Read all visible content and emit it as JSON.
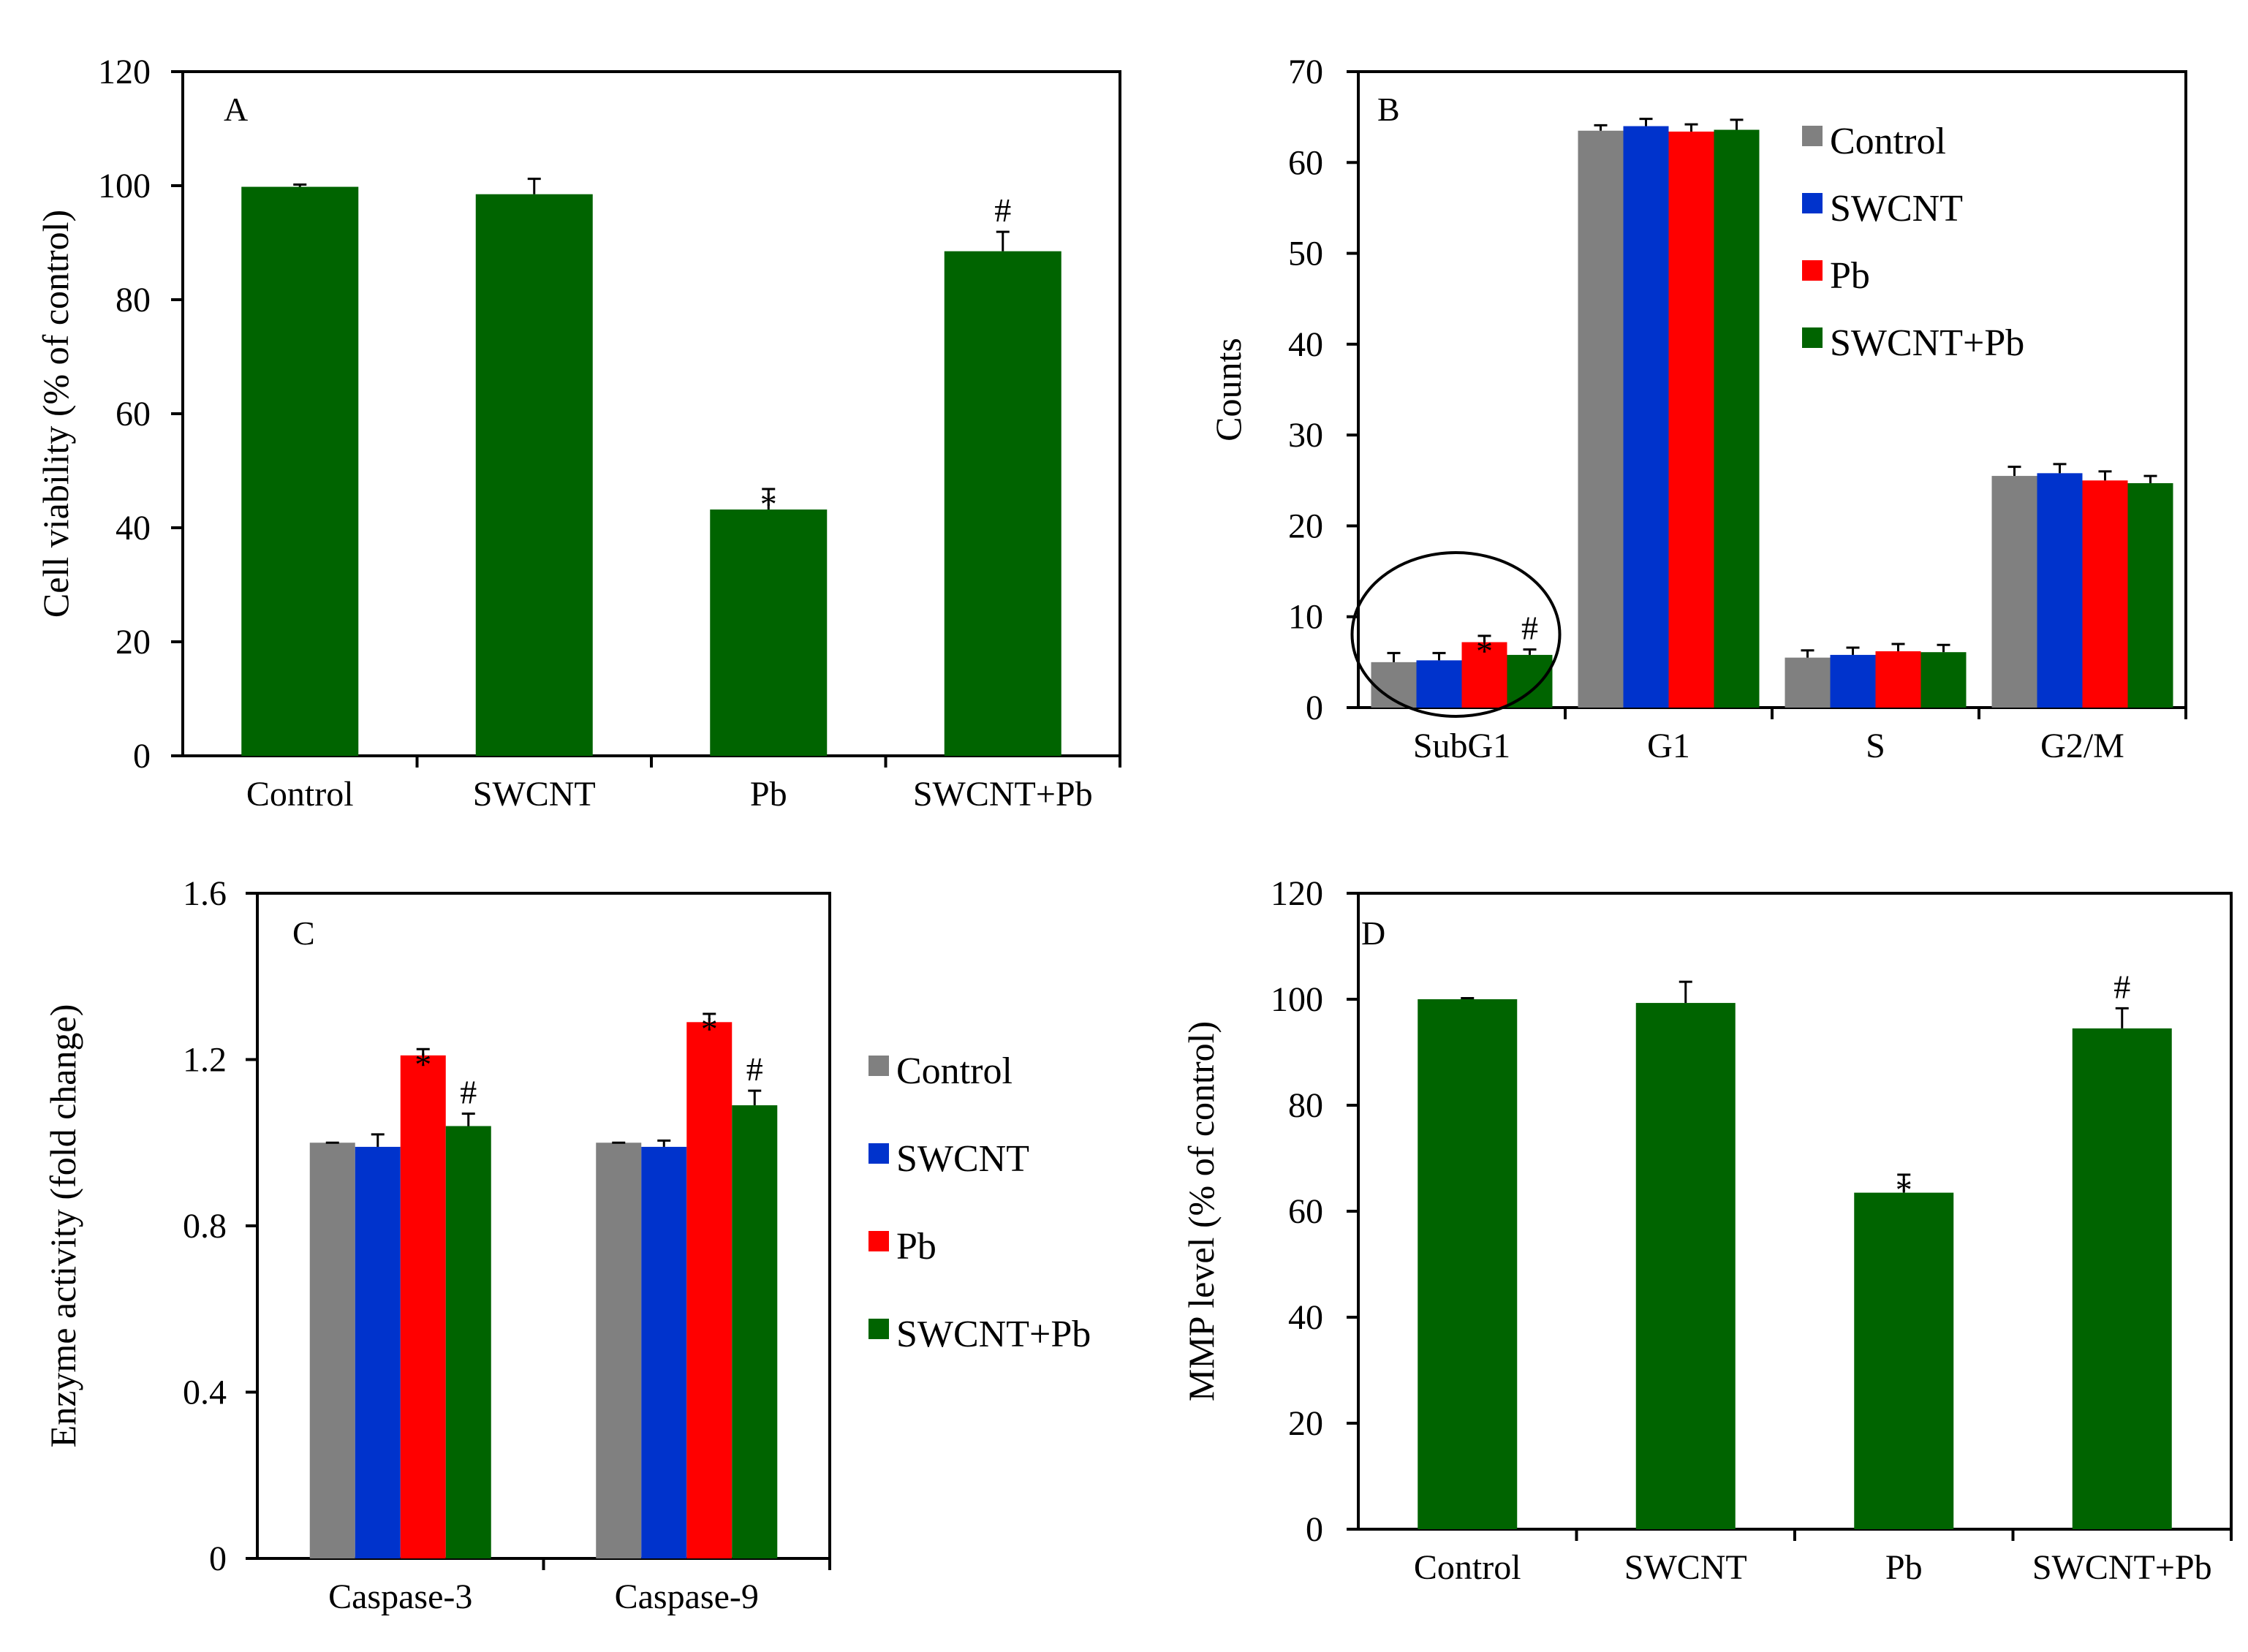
{
  "colors": {
    "Control": "#808080",
    "SWCNT": "#0033cc",
    "Pb": "#ff0000",
    "SWCNT+Pb": "#006400",
    "single": "#006400"
  },
  "chart_data": [
    {
      "panel": "A",
      "type": "bar",
      "categories": [
        "Control",
        "SWCNT",
        "Pb",
        "SWCNT+Pb"
      ],
      "values": [
        99.8,
        98.5,
        43.2,
        88.5
      ],
      "errors": [
        0.4,
        2.7,
        3.6,
        3.4
      ],
      "marks": [
        "",
        "",
        "*",
        "#"
      ],
      "ylabel": "Cell viability  (% of control)",
      "xlabel": "",
      "ylim": [
        0,
        120
      ],
      "yticks": [
        0,
        20,
        40,
        60,
        80,
        100,
        120
      ],
      "grid": false,
      "legend": "none"
    },
    {
      "panel": "B",
      "type": "bar",
      "categories": [
        "SubG1",
        "G1",
        "S",
        "G2/M"
      ],
      "series": [
        {
          "name": "Control",
          "values": [
            5.0,
            63.5,
            5.5,
            25.5
          ],
          "errors": [
            1.0,
            0.6,
            0.8,
            1.0
          ],
          "marks": [
            "",
            "",
            "",
            ""
          ]
        },
        {
          "name": "SWCNT",
          "values": [
            5.2,
            64.0,
            5.8,
            25.8
          ],
          "errors": [
            0.8,
            0.8,
            0.8,
            1.0
          ],
          "marks": [
            "",
            "",
            "",
            ""
          ]
        },
        {
          "name": "Pb",
          "values": [
            7.2,
            63.4,
            6.2,
            25.0
          ],
          "errors": [
            0.7,
            0.8,
            0.8,
            1.0
          ],
          "marks": [
            "*",
            "",
            "",
            ""
          ]
        },
        {
          "name": "SWCNT+Pb",
          "values": [
            5.8,
            63.6,
            6.1,
            24.7
          ],
          "errors": [
            0.6,
            1.1,
            0.8,
            0.8
          ],
          "marks": [
            "#",
            "",
            "",
            ""
          ]
        }
      ],
      "ylabel": "Counts",
      "xlabel": "",
      "ylim": [
        0,
        70
      ],
      "yticks": [
        0,
        10,
        20,
        30,
        40,
        50,
        60,
        70
      ],
      "highlight_category": "SubG1",
      "grid": false,
      "legend": "top-right"
    },
    {
      "panel": "C",
      "type": "bar",
      "categories": [
        "Caspase-3",
        "Caspase-9"
      ],
      "series": [
        {
          "name": "Control",
          "values": [
            1.0,
            1.0
          ],
          "errors": [
            0.0,
            0.0
          ],
          "marks": [
            "",
            ""
          ]
        },
        {
          "name": "SWCNT",
          "values": [
            0.99,
            0.99
          ],
          "errors": [
            0.03,
            0.015
          ],
          "marks": [
            "",
            ""
          ]
        },
        {
          "name": "Pb",
          "values": [
            1.21,
            1.29
          ],
          "errors": [
            0.015,
            0.02
          ],
          "marks": [
            "*",
            "*"
          ]
        },
        {
          "name": "SWCNT+Pb",
          "values": [
            1.04,
            1.09
          ],
          "errors": [
            0.03,
            0.035
          ],
          "marks": [
            "#",
            "#"
          ]
        }
      ],
      "ylabel": "Enzyme activity (fold change)",
      "xlabel": "",
      "ylim": [
        0,
        1.6
      ],
      "yticks": [
        0,
        0.4,
        0.8,
        1.2,
        1.6
      ],
      "ytick_labels": [
        "0",
        "0.4",
        "0.8",
        "1.2",
        "1.6"
      ],
      "grid": false,
      "legend": "right-outside"
    },
    {
      "panel": "D",
      "type": "bar",
      "categories": [
        "Control",
        "SWCNT",
        "Pb",
        "SWCNT+Pb"
      ],
      "values": [
        100,
        99.3,
        63.5,
        94.5
      ],
      "errors": [
        0.2,
        4.0,
        3.4,
        3.8
      ],
      "marks": [
        "",
        "",
        "*",
        "#"
      ],
      "ylabel": "MMP level (% of control)",
      "xlabel": "",
      "ylim": [
        0,
        120
      ],
      "yticks": [
        0,
        20,
        40,
        60,
        80,
        100,
        120
      ],
      "grid": false,
      "legend": "none"
    }
  ]
}
